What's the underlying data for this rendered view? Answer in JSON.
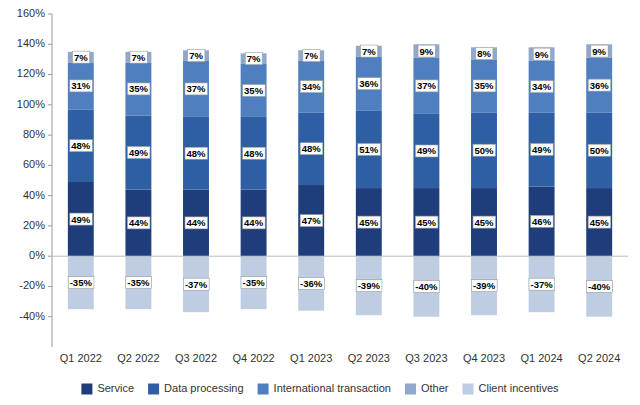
{
  "chart_data": {
    "type": "bar",
    "stacked": true,
    "data_labels": true,
    "grid": false,
    "legend": "bottom",
    "categories": [
      "Q1 2022",
      "Q2 2022",
      "Q3 2022",
      "Q4 2022",
      "Q1 2023",
      "Q2 2023",
      "Q3 2023",
      "Q4 2023",
      "Q1 2024",
      "Q2 2024"
    ],
    "series": [
      {
        "name": "Service",
        "color": "#1f3d7a",
        "values": [
          49,
          44,
          44,
          44,
          47,
          45,
          45,
          45,
          46,
          45
        ],
        "value_labels": [
          "49%",
          "44%",
          "44%",
          "44%",
          "47%",
          "45%",
          "45%",
          "45%",
          "46%",
          "45%"
        ]
      },
      {
        "name": "Data processing",
        "color": "#2e5fa3",
        "values": [
          48,
          49,
          48,
          48,
          48,
          51,
          49,
          50,
          49,
          50
        ],
        "value_labels": [
          "48%",
          "49%",
          "48%",
          "48%",
          "48%",
          "51%",
          "49%",
          "50%",
          "49%",
          "50%"
        ]
      },
      {
        "name": "International transaction",
        "color": "#4f7fbe",
        "values": [
          31,
          35,
          37,
          35,
          34,
          36,
          37,
          35,
          34,
          36
        ],
        "value_labels": [
          "31%",
          "35%",
          "37%",
          "35%",
          "34%",
          "36%",
          "37%",
          "35%",
          "34%",
          "36%"
        ]
      },
      {
        "name": "Other",
        "color": "#8fa8cc",
        "values": [
          7,
          7,
          7,
          7,
          7,
          7,
          9,
          8,
          9,
          9
        ],
        "value_labels": [
          "7%",
          "7%",
          "7%",
          "7%",
          "7%",
          "7%",
          "9%",
          "8%",
          "9%",
          "9%"
        ]
      },
      {
        "name": "Client incentives",
        "color": "#bfcde3",
        "values": [
          -35,
          -35,
          -37,
          -35,
          -36,
          -39,
          -40,
          -39,
          -37,
          -40
        ],
        "value_labels": [
          "-35%",
          "-35%",
          "-37%",
          "-35%",
          "-36%",
          "-39%",
          "-40%",
          "-39%",
          "-37%",
          "-40%"
        ]
      }
    ],
    "ylim": [
      -60,
      160
    ],
    "yticks": [
      {
        "value": -40,
        "label": "-40%"
      },
      {
        "value": -20,
        "label": "-20%"
      },
      {
        "value": 0,
        "label": "0%"
      },
      {
        "value": 20,
        "label": "20%"
      },
      {
        "value": 40,
        "label": "40%"
      },
      {
        "value": 60,
        "label": "60%"
      },
      {
        "value": 80,
        "label": "80%"
      },
      {
        "value": 100,
        "label": "100%"
      },
      {
        "value": 120,
        "label": "120%"
      },
      {
        "value": 140,
        "label": "140%"
      },
      {
        "value": 160,
        "label": "160%"
      }
    ]
  }
}
